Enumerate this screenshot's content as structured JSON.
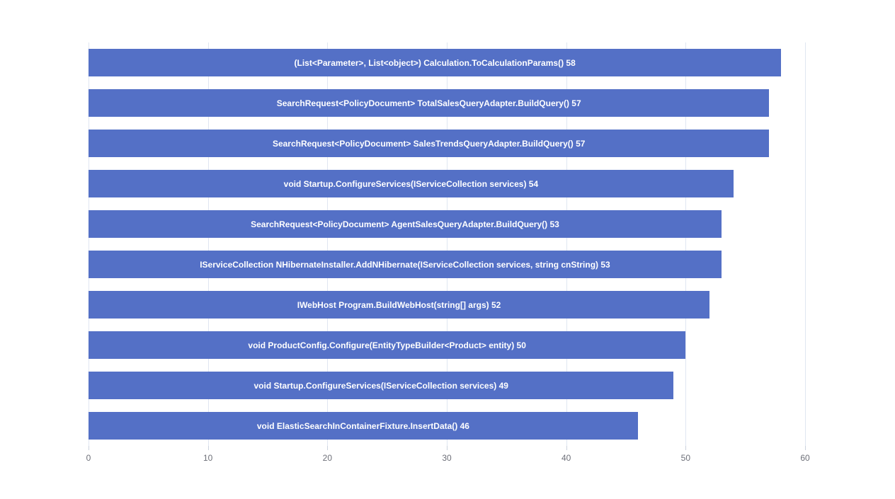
{
  "chart_data": {
    "type": "bar",
    "orientation": "horizontal",
    "title": "",
    "xlabel": "",
    "ylabel": "",
    "xlim": [
      0,
      60
    ],
    "x_ticks": [
      "0",
      "10",
      "20",
      "30",
      "40",
      "50",
      "60"
    ],
    "x_tick_values": [
      0,
      10,
      20,
      30,
      40,
      50,
      60
    ],
    "grid": true,
    "legend": "none",
    "categories": [
      "(List<Parameter>, List<object>) Calculation.ToCalculationParams()",
      "SearchRequest<PolicyDocument> TotalSalesQueryAdapter.BuildQuery()",
      "SearchRequest<PolicyDocument> SalesTrendsQueryAdapter.BuildQuery()",
      "void Startup.ConfigureServices(IServiceCollection services)",
      "SearchRequest<PolicyDocument> AgentSalesQueryAdapter.BuildQuery()",
      "IServiceCollection NHibernateInstaller.AddNHibernate(IServiceCollection services, string cnString)",
      "IWebHost Program.BuildWebHost(string[] args)",
      "void ProductConfig.Configure(EntityTypeBuilder<Product> entity)",
      "void Startup.ConfigureServices(IServiceCollection services)",
      "void ElasticSearchInContainerFixture.InsertData()"
    ],
    "values": [
      58,
      57,
      57,
      54,
      53,
      53,
      52,
      50,
      49,
      46
    ],
    "bar_labels": [
      "(List<Parameter>, List<object>) Calculation.ToCalculationParams() 58",
      "SearchRequest<PolicyDocument> TotalSalesQueryAdapter.BuildQuery() 57",
      "SearchRequest<PolicyDocument> SalesTrendsQueryAdapter.BuildQuery() 57",
      "void Startup.ConfigureServices(IServiceCollection services) 54",
      "SearchRequest<PolicyDocument> AgentSalesQueryAdapter.BuildQuery() 53",
      "IServiceCollection NHibernateInstaller.AddNHibernate(IServiceCollection services, string cnString) 53",
      "IWebHost Program.BuildWebHost(string[] args) 52",
      "void ProductConfig.Configure(EntityTypeBuilder<Product> entity) 50",
      "void Startup.ConfigureServices(IServiceCollection services) 49",
      "void ElasticSearchInContainerFixture.InsertData() 46"
    ],
    "colors": {
      "bar": "#5470c6",
      "bar_label": "#ffffff",
      "gridline": "#e0e6f1",
      "axis_tick": "#ccd3de",
      "axis_tick_label": "#6e7079",
      "background": "#ffffff"
    }
  }
}
